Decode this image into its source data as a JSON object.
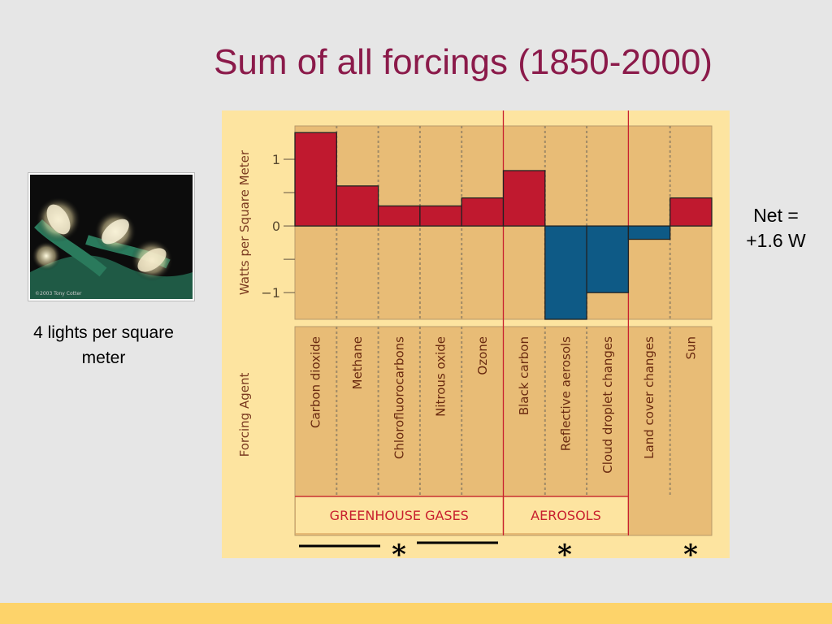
{
  "slide": {
    "title": "Sum of all forcings (1850-2000)",
    "photo_caption": "4 lights per square meter",
    "photo_credit": "©2003 Tony Cotter",
    "net_label_line1": "Net =",
    "net_label_line2": "+1.6 W",
    "asterisk": "*"
  },
  "colors": {
    "title": "#8b1a4a",
    "positive_bar": "#c0192f",
    "negative_bar": "#0e5a86",
    "chart_bg": "#fde4a0",
    "plot_bg": "#e8bc76",
    "group_label": "#c8202f"
  },
  "chart_data": {
    "type": "bar",
    "ylabel": "Watts per Square Meter",
    "xlabel": "Forcing Agent",
    "ylim": [
      -1.4,
      1.5
    ],
    "yticks": [
      1,
      0,
      -1
    ],
    "ytick_labels": [
      "1",
      "0",
      "−1"
    ],
    "categories": [
      "Carbon dioxide",
      "Methane",
      "Chlorofluorocarbons",
      "Nitrous oxide",
      "Ozone",
      "Black carbon",
      "Reflective aerosols",
      "Cloud droplet changes",
      "Land cover changes",
      "Sun"
    ],
    "values": [
      1.4,
      0.6,
      0.3,
      0.3,
      0.42,
      0.83,
      -1.4,
      -1.0,
      -0.2,
      0.42
    ],
    "groups": [
      {
        "label": "GREENHOUSE GASES",
        "start": 0,
        "end": 4
      },
      {
        "label": "AEROSOLS",
        "start": 5,
        "end": 7
      },
      {
        "label": "",
        "start": 8,
        "end": 9
      }
    ],
    "grid": true
  }
}
